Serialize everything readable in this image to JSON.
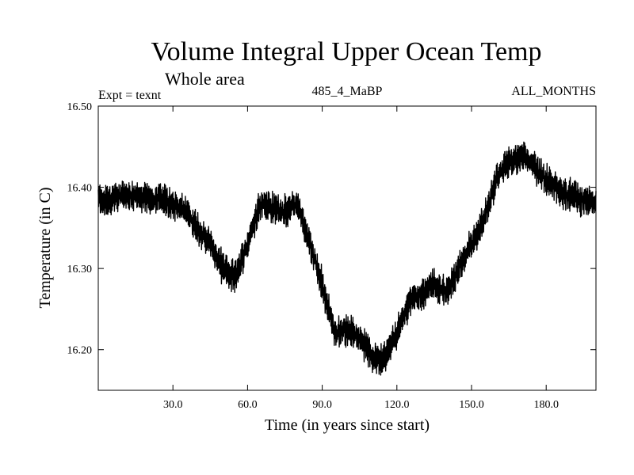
{
  "chart_data": {
    "type": "line",
    "title": "Volume Integral Upper Ocean Temp",
    "subtitle": "Whole area",
    "experiment_label": "Expt = texnt",
    "run_label": "485_4_MaBP",
    "months_label": "ALL_MONTHS",
    "xlabel": "Time (in years since start)",
    "ylabel": "Temperature (in C)",
    "xlim": [
      0,
      200
    ],
    "ylim": [
      16.15,
      16.5
    ],
    "x_ticks": [
      30,
      60,
      90,
      120,
      150,
      180
    ],
    "x_tick_labels": [
      "30.0",
      "60.0",
      "90.0",
      "120.0",
      "150.0",
      "180.0"
    ],
    "y_ticks": [
      16.2,
      16.3,
      16.4,
      16.5
    ],
    "y_tick_labels": [
      "16.20",
      "16.30",
      "16.40",
      "16.50"
    ],
    "grid": false,
    "series": [
      {
        "name": "Volume integral upper ocean temperature",
        "color": "#000000",
        "trend_x": [
          0,
          5,
          10,
          15,
          20,
          25,
          30,
          35,
          40,
          45,
          50,
          55,
          60,
          65,
          70,
          75,
          80,
          85,
          90,
          95,
          100,
          105,
          110,
          115,
          120,
          125,
          130,
          135,
          140,
          145,
          150,
          155,
          160,
          165,
          170,
          175,
          180,
          185,
          190,
          195,
          200
        ],
        "trend_y": [
          16.385,
          16.385,
          16.39,
          16.39,
          16.385,
          16.385,
          16.38,
          16.37,
          16.35,
          16.33,
          16.3,
          16.29,
          16.33,
          16.38,
          16.375,
          16.37,
          16.38,
          16.33,
          16.28,
          16.22,
          16.225,
          16.215,
          16.19,
          16.19,
          16.22,
          16.26,
          16.27,
          16.28,
          16.27,
          16.3,
          16.33,
          16.36,
          16.41,
          16.43,
          16.44,
          16.425,
          16.41,
          16.395,
          16.39,
          16.385,
          16.38
        ],
        "annual_noise_amplitude": 0.02
      }
    ]
  }
}
